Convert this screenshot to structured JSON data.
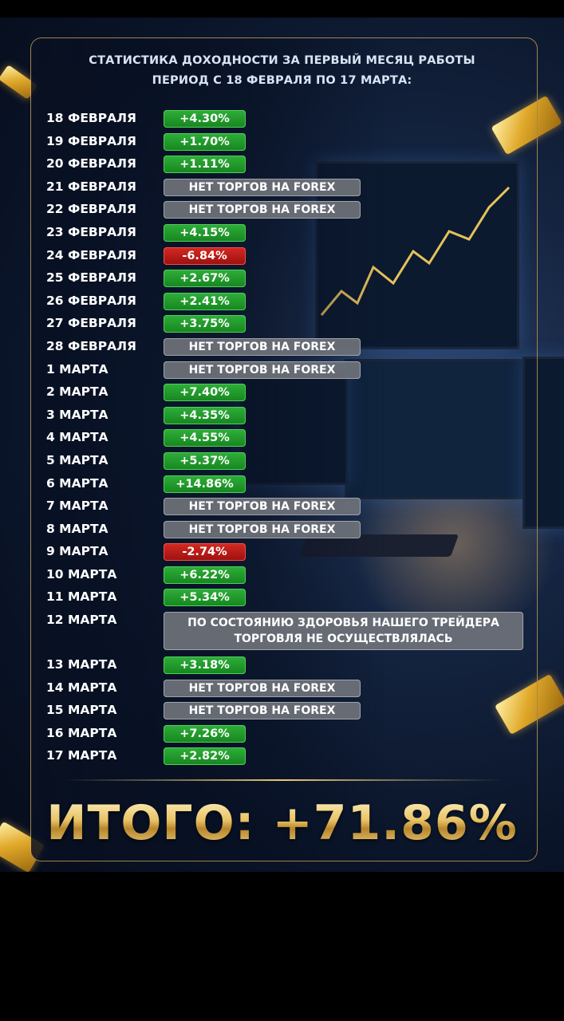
{
  "title": {
    "line1": "СТАТИСТИКА ДОХОДНОСТИ ЗА ПЕРВЫЙ МЕСЯЦ РАБОТЫ",
    "line2": "ПЕРИОД С 18 ФЕВРАЛЯ ПО 17 МАРТА:"
  },
  "rows": [
    {
      "date": "18 ФЕВРАЛЯ",
      "value": "+4.30%",
      "kind": "pos"
    },
    {
      "date": "19 ФЕВРАЛЯ",
      "value": "+1.70%",
      "kind": "pos"
    },
    {
      "date": "20 ФЕВРАЛЯ",
      "value": "+1.11%",
      "kind": "pos"
    },
    {
      "date": "21 ФЕВРАЛЯ",
      "value": "НЕТ ТОРГОВ НА FOREX",
      "kind": "none"
    },
    {
      "date": "22 ФЕВРАЛЯ",
      "value": "НЕТ ТОРГОВ НА FOREX",
      "kind": "none"
    },
    {
      "date": "23 ФЕВРАЛЯ",
      "value": "+4.15%",
      "kind": "pos"
    },
    {
      "date": "24 ФЕВРАЛЯ",
      "value": "-6.84%",
      "kind": "neg"
    },
    {
      "date": "25 ФЕВРАЛЯ",
      "value": "+2.67%",
      "kind": "pos"
    },
    {
      "date": "26 ФЕВРАЛЯ",
      "value": "+2.41%",
      "kind": "pos"
    },
    {
      "date": "27 ФЕВРАЛЯ",
      "value": "+3.75%",
      "kind": "pos"
    },
    {
      "date": "28 ФЕВРАЛЯ",
      "value": "НЕТ ТОРГОВ НА FOREX",
      "kind": "none"
    },
    {
      "date": "1 МАРТА",
      "value": "НЕТ ТОРГОВ НА FOREX",
      "kind": "none"
    },
    {
      "date": "2 МАРТА",
      "value": "+7.40%",
      "kind": "pos"
    },
    {
      "date": "3 МАРТА",
      "value": "+4.35%",
      "kind": "pos"
    },
    {
      "date": "4 МАРТА",
      "value": "+4.55%",
      "kind": "pos"
    },
    {
      "date": "5 МАРТА",
      "value": "+5.37%",
      "kind": "pos"
    },
    {
      "date": "6 МАРТА",
      "value": "+14.86%",
      "kind": "pos"
    },
    {
      "date": "7 МАРТА",
      "value": "НЕТ ТОРГОВ НА FOREX",
      "kind": "none"
    },
    {
      "date": "8 МАРТА",
      "value": "НЕТ ТОРГОВ НА FOREX",
      "kind": "none"
    },
    {
      "date": "9 МАРТА",
      "value": "-2.74%",
      "kind": "neg"
    },
    {
      "date": "10 МАРТА",
      "value": "+6.22%",
      "kind": "pos"
    },
    {
      "date": "11 МАРТА",
      "value": "+5.34%",
      "kind": "pos"
    },
    {
      "date": "12 МАРТА",
      "value": "ПО СОСТОЯНИЮ ЗДОРОВЬЯ НАШЕГО ТРЕЙДЕРА ТОРГОВЛЯ НЕ ОСУЩЕСТВЛЯЛАСЬ",
      "kind": "note"
    },
    {
      "date": "13 МАРТА",
      "value": "+3.18%",
      "kind": "pos"
    },
    {
      "date": "14 МАРТА",
      "value": "НЕТ ТОРГОВ НА FOREX",
      "kind": "none"
    },
    {
      "date": "15 МАРТА",
      "value": "НЕТ ТОРГОВ НА FOREX",
      "kind": "none"
    },
    {
      "date": "16 МАРТА",
      "value": "+7.26%",
      "kind": "pos"
    },
    {
      "date": "17 МАРТА",
      "value": "+2.82%",
      "kind": "pos"
    }
  ],
  "total": "ИТОГО: +71.86%",
  "colors": {
    "positive": "#1f9a2a",
    "negative": "#c01a16",
    "neutral": "#6e727a",
    "gold": "#e8c266",
    "background": "#0a1428"
  }
}
